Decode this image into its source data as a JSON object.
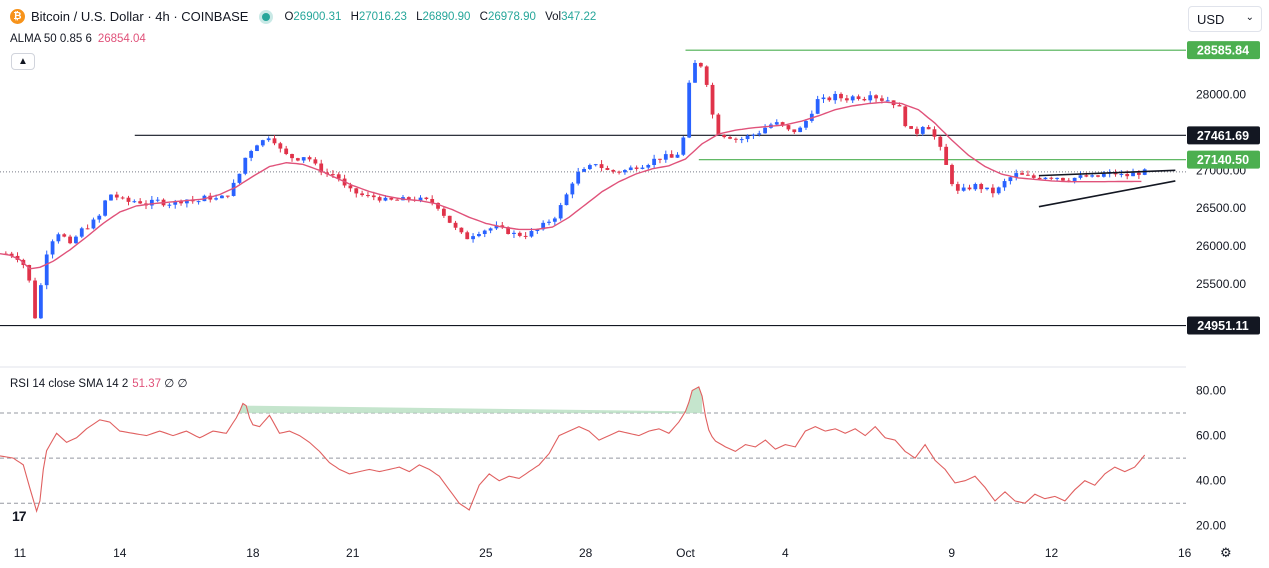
{
  "header": {
    "symbol": "Bitcoin / U.S. Dollar · 4h · COINBASE",
    "ohlc": [
      {
        "k": "O",
        "v": "26900.31"
      },
      {
        "k": "H",
        "v": "27016.23"
      },
      {
        "k": "L",
        "v": "26890.90"
      },
      {
        "k": "C",
        "v": "26978.90"
      },
      {
        "k": "Vol",
        "v": "347.22"
      }
    ]
  },
  "alma_legend": {
    "label": "ALMA 50 0.85 6",
    "value": "26854.04"
  },
  "rsi_legend": {
    "label": "RSI 14 close SMA 14 2",
    "value": "51.37",
    "extra": "∅ ∅"
  },
  "currency": {
    "label": "USD"
  },
  "colors": {
    "up": "#2962ff",
    "down": "#e0334a",
    "alma": "#e0527a",
    "rsi": "#e06060",
    "level": "#131722",
    "green": "#4caf50"
  },
  "icons": {
    "collapse": "chevron-up-icon",
    "logo": "tradingview-logo-icon",
    "settings": "gear-icon",
    "coin": "bitcoin-logo-icon"
  },
  "chart_data": [
    {
      "type": "candlestick",
      "ylim": [
        24800,
        28720
      ],
      "yticks": [
        "28000.00",
        "27000.00",
        "26500.00",
        "26000.00",
        "25500.00"
      ],
      "ytick_values": [
        28000,
        27000,
        26500,
        26000,
        25500
      ],
      "xticks": [
        {
          "label": "11",
          "x": 10.0
        },
        {
          "label": "14",
          "x": 13.0
        },
        {
          "label": "18",
          "x": 17.0
        },
        {
          "label": "21",
          "x": 20.0
        },
        {
          "label": "25",
          "x": 24.0
        },
        {
          "label": "28",
          "x": 27.0
        },
        {
          "label": "Oct",
          "x": 30.0
        },
        {
          "label": "4",
          "x": 33.0
        },
        {
          "label": "9",
          "x": 38.0
        },
        {
          "label": "12",
          "x": 41.0
        },
        {
          "label": "16",
          "x": 45.0
        }
      ],
      "xlim": [
        9.4,
        44.8
      ],
      "levels": [
        {
          "value": 28585.84,
          "label": "28585.84",
          "color": "green",
          "x_start": 30.0
        },
        {
          "value": 27461.69,
          "label": "27461.69",
          "color": "black",
          "x_start": 13.45
        },
        {
          "value": 27140.5,
          "label": "27140.50",
          "color": "green",
          "x_start": 30.4
        },
        {
          "value": 24951.11,
          "label": "24951.11",
          "color": "black",
          "x_start": 9.4
        }
      ],
      "current_price": 26978.9,
      "triangle": {
        "upper": [
          [
            40.62,
            26930
          ],
          [
            44.72,
            27000
          ]
        ],
        "lower": [
          [
            40.62,
            26520
          ],
          [
            44.72,
            26860
          ]
        ]
      },
      "anchors": [
        [
          9.4,
          25900
        ],
        [
          9.7,
          25900
        ],
        [
          10.0,
          25830
        ],
        [
          10.25,
          25650
        ],
        [
          10.4,
          25020
        ],
        [
          10.55,
          25150
        ],
        [
          10.7,
          25780
        ],
        [
          10.9,
          26050
        ],
        [
          11.2,
          26200
        ],
        [
          11.5,
          26000
        ],
        [
          11.8,
          26200
        ],
        [
          12.1,
          26280
        ],
        [
          12.4,
          26400
        ],
        [
          12.65,
          26700
        ],
        [
          12.9,
          26650
        ],
        [
          13.2,
          26580
        ],
        [
          13.5,
          26600
        ],
        [
          13.8,
          26550
        ],
        [
          14.1,
          26600
        ],
        [
          14.4,
          26560
        ],
        [
          14.7,
          26580
        ],
        [
          15.0,
          26620
        ],
        [
          15.3,
          26580
        ],
        [
          15.6,
          26650
        ],
        [
          15.9,
          26620
        ],
        [
          16.2,
          26660
        ],
        [
          16.55,
          26900
        ],
        [
          16.8,
          27200
        ],
        [
          17.1,
          27350
        ],
        [
          17.35,
          27400
        ],
        [
          17.55,
          27480
        ],
        [
          17.75,
          27300
        ],
        [
          18.0,
          27200
        ],
        [
          18.3,
          27150
        ],
        [
          18.6,
          27200
        ],
        [
          18.9,
          27050
        ],
        [
          19.2,
          26950
        ],
        [
          19.5,
          26950
        ],
        [
          19.8,
          26750
        ],
        [
          20.1,
          26700
        ],
        [
          20.4,
          26650
        ],
        [
          20.7,
          26650
        ],
        [
          21.0,
          26600
        ],
        [
          21.3,
          26600
        ],
        [
          21.6,
          26620
        ],
        [
          21.9,
          26620
        ],
        [
          22.2,
          26600
        ],
        [
          22.5,
          26560
        ],
        [
          22.8,
          26380
        ],
        [
          23.1,
          26220
        ],
        [
          23.4,
          26100
        ],
        [
          23.7,
          26180
        ],
        [
          24.0,
          26220
        ],
        [
          24.3,
          26250
        ],
        [
          24.6,
          26200
        ],
        [
          24.9,
          26150
        ],
        [
          25.2,
          26150
        ],
        [
          25.5,
          26200
        ],
        [
          25.8,
          26300
        ],
        [
          26.1,
          26400
        ],
        [
          26.4,
          26650
        ],
        [
          26.7,
          26950
        ],
        [
          27.0,
          27000
        ],
        [
          27.3,
          27100
        ],
        [
          27.6,
          27000
        ],
        [
          27.9,
          26980
        ],
        [
          28.2,
          27000
        ],
        [
          28.5,
          27050
        ],
        [
          28.8,
          27080
        ],
        [
          29.1,
          27150
        ],
        [
          29.4,
          27180
        ],
        [
          29.7,
          27150
        ],
        [
          30.0,
          27500
        ],
        [
          30.15,
          28350
        ],
        [
          30.4,
          28450
        ],
        [
          30.6,
          28250
        ],
        [
          30.8,
          27750
        ],
        [
          31.0,
          27480
        ],
        [
          31.3,
          27450
        ],
        [
          31.6,
          27400
        ],
        [
          31.9,
          27450
        ],
        [
          32.2,
          27500
        ],
        [
          32.5,
          27600
        ],
        [
          32.8,
          27620
        ],
        [
          33.1,
          27520
        ],
        [
          33.4,
          27520
        ],
        [
          33.7,
          27700
        ],
        [
          34.0,
          27950
        ],
        [
          34.2,
          27920
        ],
        [
          34.5,
          27980
        ],
        [
          34.8,
          27940
        ],
        [
          35.1,
          27980
        ],
        [
          35.4,
          27950
        ],
        [
          35.6,
          28050
        ],
        [
          35.8,
          27920
        ],
        [
          36.0,
          27950
        ],
        [
          36.2,
          27900
        ],
        [
          36.4,
          27850
        ],
        [
          36.6,
          27620
        ],
        [
          36.8,
          27500
        ],
        [
          37.0,
          27500
        ],
        [
          37.2,
          27650
        ],
        [
          37.4,
          27500
        ],
        [
          37.6,
          27350
        ],
        [
          37.8,
          27100
        ],
        [
          38.0,
          26850
        ],
        [
          38.2,
          26700
        ],
        [
          38.4,
          26750
        ],
        [
          38.7,
          26800
        ],
        [
          39.0,
          26750
        ],
        [
          39.3,
          26700
        ],
        [
          39.6,
          26850
        ],
        [
          39.9,
          26950
        ],
        [
          40.2,
          26920
        ],
        [
          40.5,
          26900
        ],
        [
          40.8,
          26920
        ],
        [
          41.1,
          26920
        ],
        [
          41.4,
          26880
        ],
        [
          41.7,
          26900
        ],
        [
          42.0,
          26920
        ],
        [
          42.3,
          26900
        ],
        [
          42.6,
          26950
        ],
        [
          42.9,
          26960
        ],
        [
          43.2,
          26920
        ],
        [
          43.5,
          26960
        ],
        [
          43.8,
          26978.9
        ]
      ],
      "alma_anchors": [
        [
          9.4,
          25900
        ],
        [
          9.7,
          25880
        ],
        [
          10.0,
          25820
        ],
        [
          10.3,
          25700
        ],
        [
          10.6,
          25720
        ],
        [
          11.0,
          25800
        ],
        [
          11.5,
          25950
        ],
        [
          12.0,
          26120
        ],
        [
          12.5,
          26300
        ],
        [
          13.0,
          26450
        ],
        [
          13.5,
          26530
        ],
        [
          14.0,
          26560
        ],
        [
          14.5,
          26580
        ],
        [
          15.0,
          26600
        ],
        [
          15.5,
          26620
        ],
        [
          16.0,
          26680
        ],
        [
          16.5,
          26780
        ],
        [
          17.0,
          26920
        ],
        [
          17.5,
          27050
        ],
        [
          18.0,
          27100
        ],
        [
          18.5,
          27080
        ],
        [
          19.0,
          27000
        ],
        [
          19.5,
          26900
        ],
        [
          20.0,
          26800
        ],
        [
          20.5,
          26720
        ],
        [
          21.0,
          26660
        ],
        [
          21.5,
          26620
        ],
        [
          22.0,
          26600
        ],
        [
          22.5,
          26560
        ],
        [
          23.0,
          26480
        ],
        [
          23.5,
          26380
        ],
        [
          24.0,
          26300
        ],
        [
          24.5,
          26250
        ],
        [
          25.0,
          26220
        ],
        [
          25.5,
          26220
        ],
        [
          26.0,
          26250
        ],
        [
          26.5,
          26380
        ],
        [
          27.0,
          26550
        ],
        [
          27.5,
          26720
        ],
        [
          28.0,
          26850
        ],
        [
          28.5,
          26950
        ],
        [
          29.0,
          27020
        ],
        [
          29.5,
          27060
        ],
        [
          30.0,
          27150
        ],
        [
          30.5,
          27350
        ],
        [
          31.0,
          27480
        ],
        [
          31.5,
          27530
        ],
        [
          32.0,
          27560
        ],
        [
          32.5,
          27580
        ],
        [
          33.0,
          27600
        ],
        [
          33.5,
          27650
        ],
        [
          34.0,
          27720
        ],
        [
          34.5,
          27800
        ],
        [
          35.0,
          27850
        ],
        [
          35.5,
          27880
        ],
        [
          36.0,
          27900
        ],
        [
          36.5,
          27880
        ],
        [
          37.0,
          27800
        ],
        [
          37.5,
          27620
        ],
        [
          38.0,
          27400
        ],
        [
          38.5,
          27200
        ],
        [
          39.0,
          27050
        ],
        [
          39.5,
          26950
        ],
        [
          40.0,
          26900
        ],
        [
          40.5,
          26880
        ],
        [
          41.0,
          26860
        ],
        [
          41.5,
          26850
        ],
        [
          42.0,
          26850
        ],
        [
          42.5,
          26850
        ],
        [
          43.0,
          26852
        ],
        [
          43.8,
          26854.04
        ]
      ],
      "candle_count": 196
    },
    {
      "type": "line",
      "ylim": [
        15,
        86
      ],
      "yticks": [
        "80.00",
        "60.00",
        "40.00",
        "20.00"
      ],
      "ytick_values": [
        80,
        60,
        40,
        20
      ],
      "bands": [
        70,
        50,
        30
      ],
      "anchors": [
        [
          9.4,
          51
        ],
        [
          9.8,
          50
        ],
        [
          10.1,
          47
        ],
        [
          10.35,
          34
        ],
        [
          10.55,
          24
        ],
        [
          10.75,
          52
        ],
        [
          11.1,
          61
        ],
        [
          11.4,
          57
        ],
        [
          11.7,
          59
        ],
        [
          12.0,
          63
        ],
        [
          12.4,
          67
        ],
        [
          12.7,
          66
        ],
        [
          13.0,
          62
        ],
        [
          13.4,
          61
        ],
        [
          13.8,
          60
        ],
        [
          14.2,
          62
        ],
        [
          14.6,
          60
        ],
        [
          15.0,
          62
        ],
        [
          15.4,
          59
        ],
        [
          15.8,
          62
        ],
        [
          16.2,
          61
        ],
        [
          16.55,
          69
        ],
        [
          16.75,
          76
        ],
        [
          16.95,
          65
        ],
        [
          17.2,
          64
        ],
        [
          17.5,
          69
        ],
        [
          17.8,
          61
        ],
        [
          18.1,
          62
        ],
        [
          18.4,
          60
        ],
        [
          18.7,
          57
        ],
        [
          19.0,
          53
        ],
        [
          19.3,
          48
        ],
        [
          19.6,
          45
        ],
        [
          19.9,
          43
        ],
        [
          20.2,
          44
        ],
        [
          20.5,
          45
        ],
        [
          20.8,
          44
        ],
        [
          21.1,
          45
        ],
        [
          21.4,
          46
        ],
        [
          21.7,
          44
        ],
        [
          22.0,
          47
        ],
        [
          22.3,
          45
        ],
        [
          22.6,
          42
        ],
        [
          22.9,
          36
        ],
        [
          23.2,
          30
        ],
        [
          23.5,
          27
        ],
        [
          23.8,
          38
        ],
        [
          24.1,
          43
        ],
        [
          24.4,
          40
        ],
        [
          24.7,
          42
        ],
        [
          25.0,
          41
        ],
        [
          25.3,
          44
        ],
        [
          25.6,
          47
        ],
        [
          25.9,
          52
        ],
        [
          26.2,
          60
        ],
        [
          26.5,
          62
        ],
        [
          26.8,
          64
        ],
        [
          27.1,
          62
        ],
        [
          27.4,
          58
        ],
        [
          27.7,
          60
        ],
        [
          28.0,
          62
        ],
        [
          28.3,
          61
        ],
        [
          28.6,
          60
        ],
        [
          28.9,
          62
        ],
        [
          29.2,
          63
        ],
        [
          29.5,
          61
        ],
        [
          29.8,
          66
        ],
        [
          30.05,
          72
        ],
        [
          30.2,
          80
        ],
        [
          30.45,
          82
        ],
        [
          30.65,
          64
        ],
        [
          30.85,
          58
        ],
        [
          31.2,
          55
        ],
        [
          31.5,
          53
        ],
        [
          31.8,
          56
        ],
        [
          32.1,
          55
        ],
        [
          32.4,
          58
        ],
        [
          32.7,
          54
        ],
        [
          33.0,
          56
        ],
        [
          33.3,
          55
        ],
        [
          33.6,
          62
        ],
        [
          33.9,
          64
        ],
        [
          34.2,
          62
        ],
        [
          34.5,
          63
        ],
        [
          34.8,
          61
        ],
        [
          35.1,
          63
        ],
        [
          35.4,
          60
        ],
        [
          35.7,
          64
        ],
        [
          36.0,
          59
        ],
        [
          36.3,
          58
        ],
        [
          36.6,
          53
        ],
        [
          36.9,
          50
        ],
        [
          37.2,
          56
        ],
        [
          37.5,
          49
        ],
        [
          37.8,
          45
        ],
        [
          38.1,
          39
        ],
        [
          38.4,
          40
        ],
        [
          38.7,
          42
        ],
        [
          39.0,
          37
        ],
        [
          39.3,
          31
        ],
        [
          39.6,
          35
        ],
        [
          39.9,
          31
        ],
        [
          40.2,
          30
        ],
        [
          40.5,
          34
        ],
        [
          40.8,
          32
        ],
        [
          41.1,
          33
        ],
        [
          41.4,
          31
        ],
        [
          41.7,
          36
        ],
        [
          42.0,
          40
        ],
        [
          42.3,
          38
        ],
        [
          42.6,
          43
        ],
        [
          42.9,
          46
        ],
        [
          43.2,
          44
        ],
        [
          43.5,
          46
        ],
        [
          43.8,
          51.37
        ]
      ]
    }
  ]
}
